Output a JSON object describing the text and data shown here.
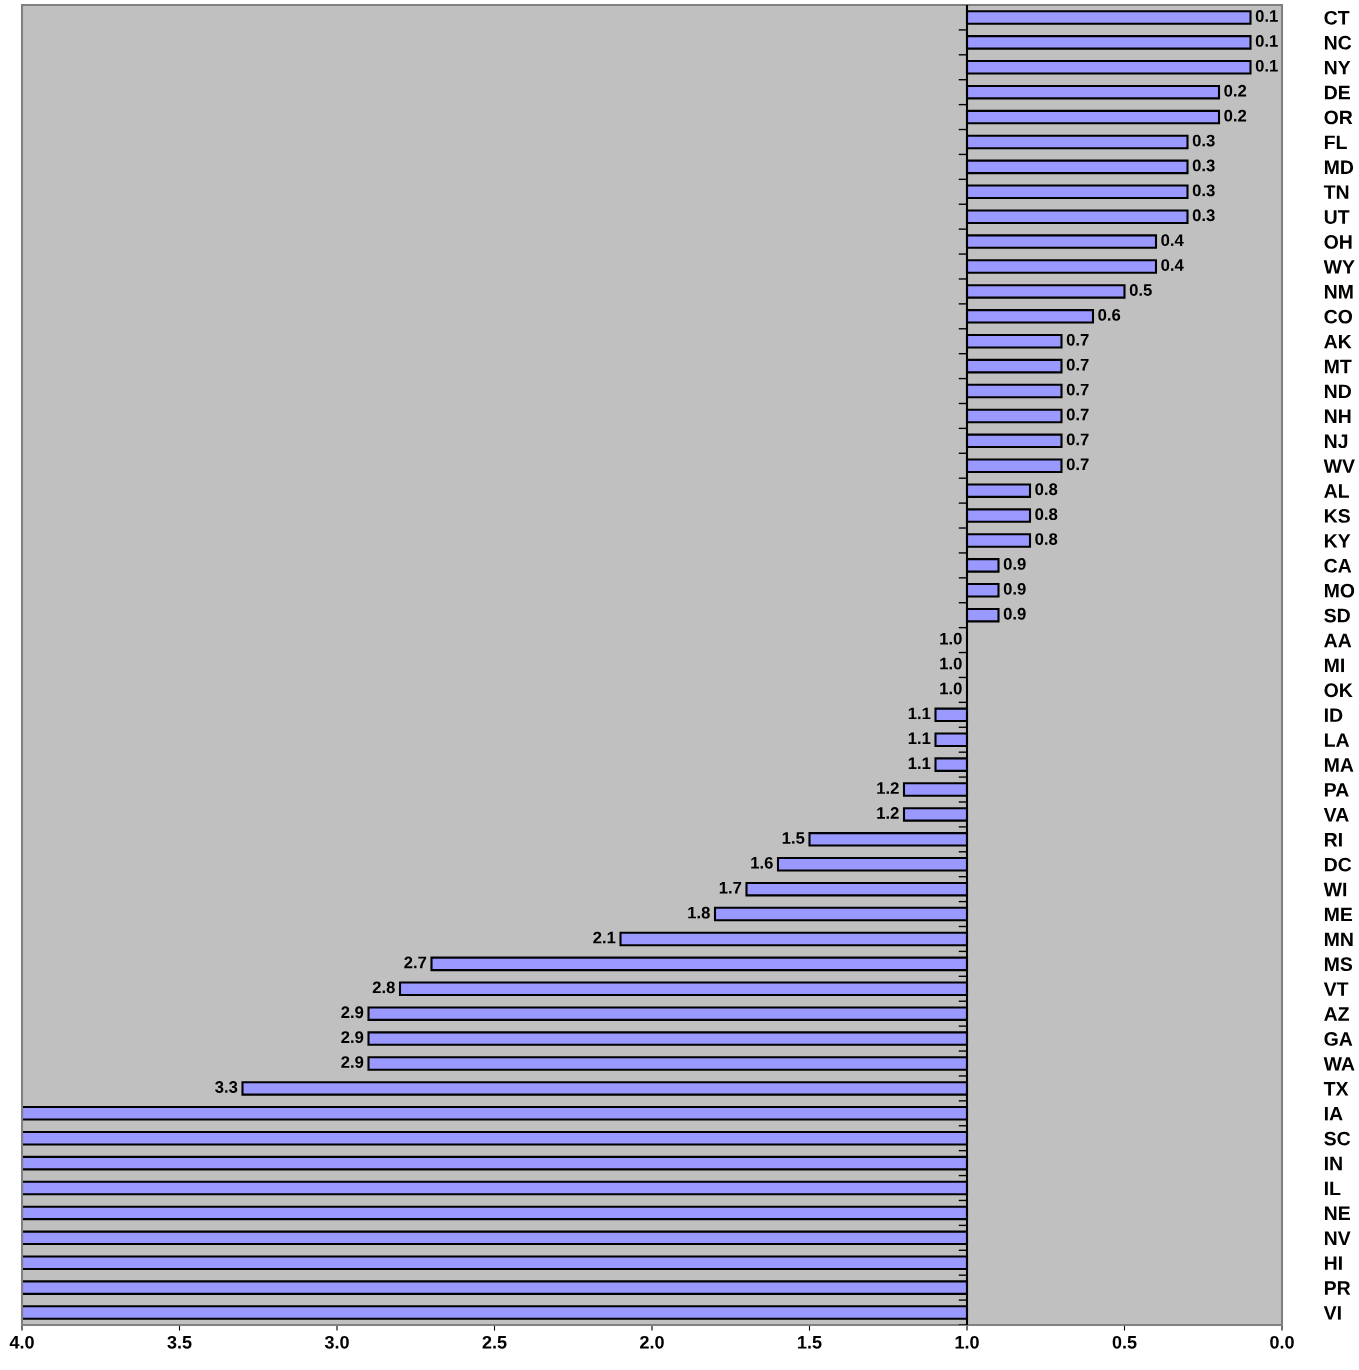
{
  "chart_data": {
    "type": "bar",
    "orientation": "horizontal",
    "categories": [
      "CT",
      "NC",
      "NY",
      "DE",
      "OR",
      "FL",
      "MD",
      "TN",
      "UT",
      "OH",
      "WY",
      "NM",
      "CO",
      "AK",
      "MT",
      "ND",
      "NH",
      "NJ",
      "WV",
      "AL",
      "KS",
      "KY",
      "CA",
      "MO",
      "SD",
      "AA",
      "MI",
      "OK",
      "ID",
      "LA",
      "MA",
      "PA",
      "VA",
      "RI",
      "DC",
      "WI",
      "ME",
      "MN",
      "MS",
      "VT",
      "AZ",
      "GA",
      "WA",
      "TX",
      "IA",
      "SC",
      "IN",
      "IL",
      "NE",
      "NV",
      "HI",
      "PR",
      "VI"
    ],
    "base": [
      1.0,
      1.0,
      1.0,
      1.0,
      1.0,
      1.0,
      1.0,
      1.0,
      1.0,
      1.0,
      1.0,
      1.0,
      1.0,
      1.0,
      1.0,
      1.0,
      1.0,
      1.0,
      1.0,
      1.0,
      1.0,
      1.0,
      1.0,
      1.0,
      1.0,
      1.0,
      1.0,
      1.0,
      1.0,
      1.0,
      1.0,
      1.0,
      1.0,
      1.0,
      1.0,
      1.0,
      1.0,
      1.0,
      1.0,
      1.0,
      1.0,
      1.0,
      1.0,
      1.0,
      1.0,
      1.0,
      1.0,
      1.0,
      1.0,
      1.0,
      1.0,
      1.0,
      1.0
    ],
    "values": [
      -0.9,
      -0.9,
      -0.9,
      -0.8,
      -0.8,
      -0.7,
      -0.7,
      -0.7,
      -0.7,
      -0.6,
      -0.6,
      -0.5,
      -0.4,
      -0.3,
      -0.3,
      -0.3,
      -0.3,
      -0.3,
      -0.3,
      -0.2,
      -0.2,
      -0.2,
      -0.1,
      -0.1,
      -0.1,
      0,
      0,
      0,
      0.1,
      0.1,
      0.1,
      0.2,
      0.2,
      0.5,
      0.6,
      0.7,
      0.8,
      1.1,
      1.7,
      1.8,
      1.9,
      1.9,
      1.9,
      2.3,
      3.0,
      3.0,
      3.0,
      3.0,
      3.0,
      3.0,
      3.0,
      3.0,
      3.0
    ],
    "value_labels": [
      "0.1",
      "0.1",
      "0.1",
      "0.2",
      "0.2",
      "0.3",
      "0.3",
      "0.3",
      "0.3",
      "0.4",
      "0.4",
      "0.5",
      "0.6",
      "0.7",
      "0.7",
      "0.7",
      "0.7",
      "0.7",
      "0.7",
      "0.8",
      "0.8",
      "0.8",
      "0.9",
      "0.9",
      "0.9",
      "1.0",
      "1.0",
      "1.0",
      "1.1",
      "1.1",
      "1.1",
      "1.2",
      "1.2",
      "1.5",
      "1.6",
      "1.7",
      "1.8",
      "2.1",
      "2.7",
      "2.8",
      "2.9",
      "2.9",
      "2.9",
      "3.3",
      null,
      null,
      null,
      null,
      null,
      null,
      null,
      null,
      null
    ],
    "color": "#9999ff",
    "xlim": [
      4.0,
      0.0
    ],
    "xticks": [
      {
        "value": 4.0,
        "label": "4.0"
      },
      {
        "value": 3.5,
        "label": "3.5"
      },
      {
        "value": 3.0,
        "label": "3.0"
      },
      {
        "value": 2.5,
        "label": "2.5"
      },
      {
        "value": 2.0,
        "label": "2.0"
      },
      {
        "value": 1.5,
        "label": "1.5"
      },
      {
        "value": 1.0,
        "label": "1.0"
      },
      {
        "value": 0.5,
        "label": "0.5"
      },
      {
        "value": 0.0,
        "label": "0.0"
      }
    ],
    "ref_lines": [
      {
        "axis": "x",
        "value": 1.0,
        "color": "#000000"
      }
    ],
    "grid": false,
    "legend": false
  }
}
